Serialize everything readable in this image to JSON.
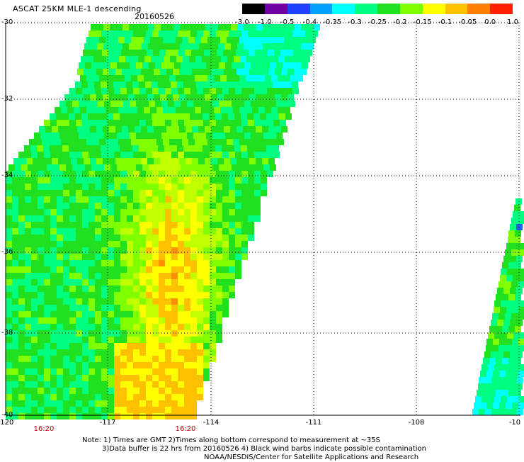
{
  "header": {
    "title": "ASCAT 25KM MLE-1 descending",
    "date": "20160526"
  },
  "colorbar": {
    "labels": [
      "-3.0",
      "-1.0",
      "-0.5",
      "-0.4",
      "-0.35",
      "-0.3",
      "-0.25",
      "-0.2",
      "-0.15",
      "-0.1",
      "-0.05",
      "0.0",
      "1.0"
    ],
    "colors": [
      "#000000",
      "#7000a0",
      "#2040ff",
      "#00a0ff",
      "#00ffff",
      "#00ff80",
      "#20e020",
      "#80ff00",
      "#ffff00",
      "#ffc000",
      "#ff8000",
      "#ff2000"
    ]
  },
  "map": {
    "lat_labels": [
      "-30",
      "-32",
      "-34",
      "-36",
      "-38",
      "-40"
    ],
    "lon_labels": [
      "-120",
      "-117",
      "-114",
      "-111",
      "-108",
      "-10"
    ],
    "time_labels": [
      "16:20",
      "16:20"
    ]
  },
  "footer": {
    "note_line1": "Note: 1) Times are GMT 2)Times along bottom correspond to measurement at ~35S",
    "note_line2": "3)Data buffer is 22 hrs from 20160526 4) Black wind barbs indicate possible contamination",
    "note_line3": "NOAA/NESDIS/Center for Satellite Applications and Research"
  }
}
